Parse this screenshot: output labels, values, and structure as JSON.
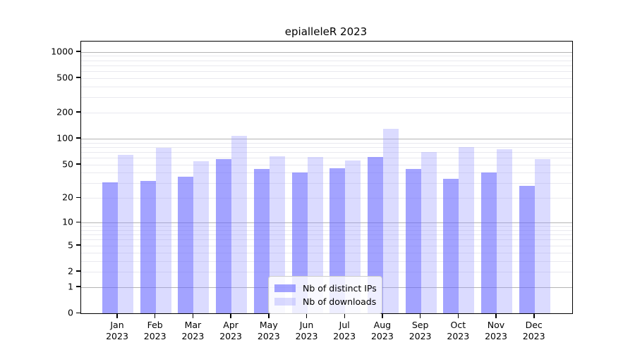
{
  "title": "epialleleR 2023",
  "chart_data": {
    "type": "bar",
    "title": "epialleleR 2023",
    "categories": [
      "Jan",
      "Feb",
      "Mar",
      "Apr",
      "May",
      "Jun",
      "Jul",
      "Aug",
      "Sep",
      "Oct",
      "Nov",
      "Dec"
    ],
    "category_year": "2023",
    "series": [
      {
        "name": "Nb of distinct IPs",
        "color": "rgba(102,102,255,0.60)",
        "values": [
          31,
          32,
          36,
          58,
          44,
          40,
          45,
          61,
          44,
          34,
          40,
          28
        ]
      },
      {
        "name": "Nb of downloads",
        "color": "rgba(153,153,255,0.35)",
        "values": [
          65,
          78,
          55,
          107,
          62,
          61,
          56,
          130,
          70,
          80,
          75,
          58
        ]
      }
    ],
    "y_ticks": [
      0,
      1,
      2,
      5,
      10,
      20,
      50,
      100,
      200,
      500,
      1000
    ],
    "y_scale": "log10(value+1)",
    "y_axis_top_value": 1312,
    "grid_major_values": [
      1,
      10,
      100,
      1000
    ],
    "grid_minor_multipliers": [
      2,
      3,
      4,
      5,
      6,
      7,
      8,
      9
    ],
    "grid_minor_decades": [
      1,
      10,
      100
    ],
    "legend_position": "bottom-center",
    "colors": {
      "ips_bar": "rgba(102,102,255,0.60)",
      "downloads_bar": "rgba(153,153,255,0.35)",
      "major_grid": "#b4b4b4",
      "minor_grid": "#e9e9ef",
      "axis": "#000000"
    }
  }
}
